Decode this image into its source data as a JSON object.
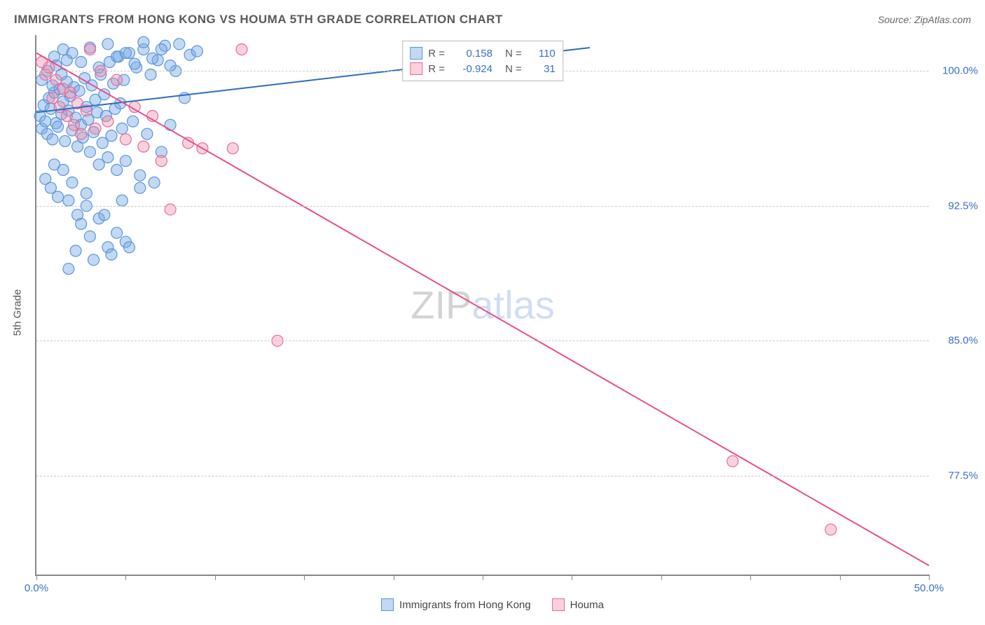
{
  "title": "IMMIGRANTS FROM HONG KONG VS HOUMA 5TH GRADE CORRELATION CHART",
  "source": "Source: ZipAtlas.com",
  "y_axis_label": "5th Grade",
  "watermark": {
    "part1": "ZIP",
    "part2": "atlas"
  },
  "chart": {
    "type": "scatter",
    "background_color": "#ffffff",
    "grid_color": "#cccccc",
    "axis_color": "#888888",
    "xlim": [
      0,
      50
    ],
    "ylim": [
      72,
      102
    ],
    "x_ticks": [
      0,
      5,
      10,
      15,
      20,
      25,
      30,
      35,
      40,
      45,
      50
    ],
    "x_tick_labels": {
      "0": "0.0%",
      "50": "50.0%"
    },
    "y_gridlines": [
      77.5,
      85.0,
      92.5,
      100.0
    ],
    "y_tick_labels": [
      "77.5%",
      "85.0%",
      "92.5%",
      "100.0%"
    ],
    "tick_label_color": "#3b6fc9",
    "tick_label_fontsize": 15,
    "series": [
      {
        "name": "Immigrants from Hong Kong",
        "color_fill": "rgba(120,170,230,0.45)",
        "color_stroke": "#5a95d8",
        "marker_radius": 8,
        "R": "0.158",
        "N": "110",
        "regression": {
          "x1": 0,
          "y1": 97.7,
          "x2": 31,
          "y2": 101.3,
          "color": "#2e6cc0",
          "width": 2
        },
        "points": [
          [
            0.2,
            97.5
          ],
          [
            0.3,
            96.8
          ],
          [
            0.4,
            98.1
          ],
          [
            0.5,
            97.2
          ],
          [
            0.6,
            96.5
          ],
          [
            0.7,
            98.5
          ],
          [
            0.8,
            97.9
          ],
          [
            0.9,
            96.2
          ],
          [
            1.0,
            98.8
          ],
          [
            1.1,
            97.1
          ],
          [
            1.2,
            96.9
          ],
          [
            1.3,
            99.0
          ],
          [
            1.4,
            97.6
          ],
          [
            1.5,
            98.3
          ],
          [
            1.6,
            96.1
          ],
          [
            1.7,
            99.4
          ],
          [
            1.8,
            97.8
          ],
          [
            1.9,
            98.6
          ],
          [
            2.0,
            96.7
          ],
          [
            2.1,
            99.1
          ],
          [
            2.2,
            97.4
          ],
          [
            2.3,
            95.8
          ],
          [
            2.4,
            98.9
          ],
          [
            2.5,
            97.0
          ],
          [
            2.6,
            96.3
          ],
          [
            2.7,
            99.6
          ],
          [
            2.8,
            98.0
          ],
          [
            2.9,
            97.3
          ],
          [
            3.0,
            95.5
          ],
          [
            3.1,
            99.2
          ],
          [
            3.2,
            96.6
          ],
          [
            3.3,
            98.4
          ],
          [
            3.4,
            97.7
          ],
          [
            3.5,
            94.8
          ],
          [
            3.6,
            99.8
          ],
          [
            3.7,
            96.0
          ],
          [
            3.8,
            98.7
          ],
          [
            3.9,
            97.5
          ],
          [
            4.0,
            95.2
          ],
          [
            4.1,
            100.5
          ],
          [
            4.2,
            96.4
          ],
          [
            4.3,
            99.3
          ],
          [
            4.4,
            97.9
          ],
          [
            4.5,
            94.5
          ],
          [
            4.6,
            100.8
          ],
          [
            4.7,
            98.2
          ],
          [
            4.8,
            96.8
          ],
          [
            4.9,
            99.5
          ],
          [
            5.0,
            95.0
          ],
          [
            5.2,
            101.0
          ],
          [
            5.4,
            97.2
          ],
          [
            5.6,
            100.2
          ],
          [
            5.8,
            94.2
          ],
          [
            6.0,
            101.2
          ],
          [
            6.2,
            96.5
          ],
          [
            6.4,
            99.8
          ],
          [
            6.6,
            93.8
          ],
          [
            6.8,
            100.6
          ],
          [
            7.0,
            95.5
          ],
          [
            7.2,
            101.4
          ],
          [
            7.5,
            97.0
          ],
          [
            7.8,
            100.0
          ],
          [
            8.0,
            101.5
          ],
          [
            8.3,
            98.5
          ],
          [
            8.6,
            100.9
          ],
          [
            9.0,
            101.1
          ],
          [
            0.5,
            94.0
          ],
          [
            0.8,
            93.5
          ],
          [
            1.0,
            94.8
          ],
          [
            1.2,
            93.0
          ],
          [
            1.5,
            94.5
          ],
          [
            1.8,
            92.8
          ],
          [
            2.0,
            93.8
          ],
          [
            2.3,
            92.0
          ],
          [
            2.5,
            91.5
          ],
          [
            2.8,
            93.2
          ],
          [
            3.0,
            90.8
          ],
          [
            3.5,
            91.8
          ],
          [
            4.0,
            90.2
          ],
          [
            4.5,
            91.0
          ],
          [
            5.0,
            90.5
          ],
          [
            1.0,
            100.8
          ],
          [
            1.5,
            101.2
          ],
          [
            2.0,
            101.0
          ],
          [
            2.5,
            100.5
          ],
          [
            3.0,
            101.3
          ],
          [
            3.5,
            100.2
          ],
          [
            4.0,
            101.5
          ],
          [
            4.5,
            100.8
          ],
          [
            5.0,
            101.0
          ],
          [
            5.5,
            100.4
          ],
          [
            6.0,
            101.6
          ],
          [
            6.5,
            100.7
          ],
          [
            7.0,
            101.2
          ],
          [
            7.5,
            100.3
          ],
          [
            0.3,
            99.5
          ],
          [
            0.6,
            100.0
          ],
          [
            0.9,
            99.2
          ],
          [
            1.1,
            100.3
          ],
          [
            1.4,
            99.8
          ],
          [
            1.7,
            100.6
          ],
          [
            2.8,
            92.5
          ],
          [
            3.8,
            92.0
          ],
          [
            4.8,
            92.8
          ],
          [
            5.8,
            93.5
          ],
          [
            2.2,
            90.0
          ],
          [
            3.2,
            89.5
          ],
          [
            4.2,
            89.8
          ],
          [
            5.2,
            90.2
          ],
          [
            1.8,
            89.0
          ]
        ]
      },
      {
        "name": "Houma",
        "color_fill": "rgba(240,140,170,0.40)",
        "color_stroke": "#e76b9a",
        "marker_radius": 8,
        "R": "-0.924",
        "N": "31",
        "regression": {
          "x1": 0,
          "y1": 101.0,
          "x2": 50,
          "y2": 72.5,
          "color": "#e94f8a",
          "width": 2
        },
        "points": [
          [
            0.3,
            100.5
          ],
          [
            0.5,
            99.8
          ],
          [
            0.7,
            100.2
          ],
          [
            0.9,
            98.5
          ],
          [
            1.1,
            99.5
          ],
          [
            1.3,
            98.0
          ],
          [
            1.5,
            99.0
          ],
          [
            1.7,
            97.5
          ],
          [
            1.9,
            98.8
          ],
          [
            2.1,
            97.0
          ],
          [
            2.3,
            98.2
          ],
          [
            2.5,
            96.5
          ],
          [
            2.8,
            97.8
          ],
          [
            3.0,
            101.2
          ],
          [
            3.3,
            96.8
          ],
          [
            3.6,
            100.0
          ],
          [
            4.0,
            97.2
          ],
          [
            4.5,
            99.5
          ],
          [
            5.0,
            96.2
          ],
          [
            5.5,
            98.0
          ],
          [
            6.0,
            95.8
          ],
          [
            6.5,
            97.5
          ],
          [
            7.0,
            95.0
          ],
          [
            7.5,
            92.3
          ],
          [
            8.5,
            96.0
          ],
          [
            9.3,
            95.7
          ],
          [
            11.0,
            95.7
          ],
          [
            11.5,
            101.2
          ],
          [
            13.5,
            85.0
          ],
          [
            39.0,
            78.3
          ],
          [
            44.5,
            74.5
          ]
        ]
      }
    ],
    "legend_top": {
      "R_label": "R =",
      "N_label": "N ="
    },
    "legend_bottom": [
      {
        "label": "Immigrants from Hong Kong",
        "fill": "rgba(120,170,230,0.45)",
        "stroke": "#5a95d8"
      },
      {
        "label": "Houma",
        "fill": "rgba(240,140,170,0.40)",
        "stroke": "#e76b9a"
      }
    ]
  }
}
